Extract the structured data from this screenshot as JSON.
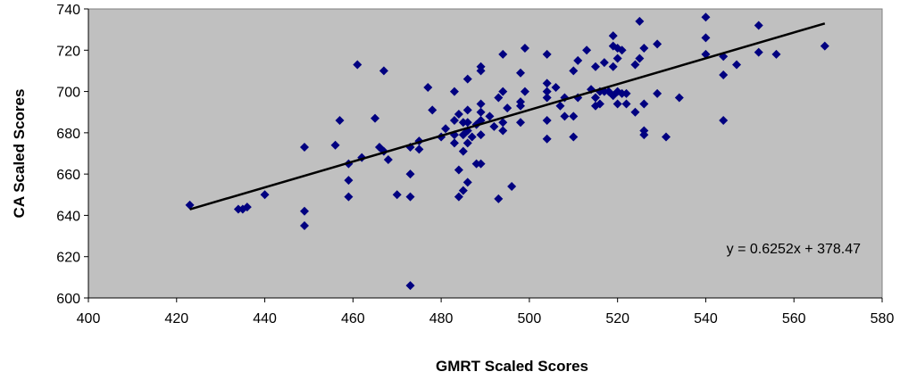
{
  "chart_data": {
    "type": "scatter",
    "xlabel": "GMRT Scaled Scores",
    "ylabel": "CA Scaled Scores",
    "xlim": [
      400,
      580
    ],
    "ylim": [
      600,
      740
    ],
    "xticks": [
      "400",
      "420",
      "440",
      "460",
      "480",
      "500",
      "520",
      "540",
      "560",
      "580"
    ],
    "yticks": [
      "600",
      "620",
      "640",
      "660",
      "680",
      "700",
      "720",
      "740"
    ],
    "grid": false,
    "plot_background": "#c0c0c0",
    "marker_color": "#000080",
    "marker": "diamond",
    "trendline": {
      "slope": 0.6252,
      "intercept": 378.47,
      "x_range": [
        423,
        567
      ],
      "color": "#000000"
    },
    "annotation": "y = 0.6252x + 378.47",
    "points": [
      [
        423,
        645
      ],
      [
        434,
        643
      ],
      [
        435,
        643
      ],
      [
        436,
        644
      ],
      [
        440,
        650
      ],
      [
        449,
        673
      ],
      [
        449,
        642
      ],
      [
        449,
        635
      ],
      [
        456,
        674
      ],
      [
        457,
        686
      ],
      [
        459,
        665
      ],
      [
        459,
        657
      ],
      [
        459,
        649
      ],
      [
        461,
        713
      ],
      [
        462,
        668
      ],
      [
        465,
        687
      ],
      [
        466,
        673
      ],
      [
        467,
        671
      ],
      [
        467,
        710
      ],
      [
        468,
        667
      ],
      [
        470,
        650
      ],
      [
        473,
        606
      ],
      [
        473,
        673
      ],
      [
        473,
        660
      ],
      [
        473,
        649
      ],
      [
        475,
        676
      ],
      [
        475,
        672
      ],
      [
        477,
        702
      ],
      [
        478,
        691
      ],
      [
        480,
        678
      ],
      [
        481,
        682
      ],
      [
        483,
        700
      ],
      [
        483,
        686
      ],
      [
        483,
        679
      ],
      [
        483,
        675
      ],
      [
        484,
        689
      ],
      [
        484,
        662
      ],
      [
        484,
        649
      ],
      [
        485,
        685
      ],
      [
        485,
        679
      ],
      [
        485,
        671
      ],
      [
        485,
        652
      ],
      [
        486,
        706
      ],
      [
        486,
        691
      ],
      [
        486,
        685
      ],
      [
        486,
        681
      ],
      [
        486,
        675
      ],
      [
        486,
        656
      ],
      [
        487,
        678
      ],
      [
        488,
        665
      ],
      [
        488,
        684
      ],
      [
        489,
        712
      ],
      [
        489,
        710
      ],
      [
        489,
        694
      ],
      [
        489,
        690
      ],
      [
        489,
        686
      ],
      [
        489,
        679
      ],
      [
        489,
        665
      ],
      [
        491,
        688
      ],
      [
        492,
        683
      ],
      [
        493,
        697
      ],
      [
        493,
        648
      ],
      [
        494,
        718
      ],
      [
        494,
        700
      ],
      [
        494,
        685
      ],
      [
        494,
        681
      ],
      [
        495,
        692
      ],
      [
        496,
        654
      ],
      [
        498,
        709
      ],
      [
        498,
        695
      ],
      [
        498,
        693
      ],
      [
        498,
        685
      ],
      [
        499,
        721
      ],
      [
        499,
        700
      ],
      [
        504,
        718
      ],
      [
        504,
        704
      ],
      [
        504,
        700
      ],
      [
        504,
        697
      ],
      [
        504,
        686
      ],
      [
        504,
        677
      ],
      [
        506,
        702
      ],
      [
        507,
        693
      ],
      [
        508,
        697
      ],
      [
        508,
        688
      ],
      [
        510,
        710
      ],
      [
        510,
        688
      ],
      [
        510,
        678
      ],
      [
        511,
        715
      ],
      [
        511,
        697
      ],
      [
        513,
        720
      ],
      [
        514,
        701
      ],
      [
        515,
        712
      ],
      [
        515,
        697
      ],
      [
        515,
        693
      ],
      [
        516,
        700
      ],
      [
        516,
        694
      ],
      [
        517,
        714
      ],
      [
        517,
        700
      ],
      [
        518,
        700
      ],
      [
        519,
        727
      ],
      [
        519,
        722
      ],
      [
        519,
        712
      ],
      [
        519,
        698
      ],
      [
        520,
        721
      ],
      [
        520,
        716
      ],
      [
        520,
        700
      ],
      [
        520,
        694
      ],
      [
        521,
        720
      ],
      [
        521,
        699
      ],
      [
        522,
        699
      ],
      [
        522,
        694
      ],
      [
        524,
        713
      ],
      [
        524,
        690
      ],
      [
        525,
        734
      ],
      [
        525,
        716
      ],
      [
        526,
        721
      ],
      [
        526,
        694
      ],
      [
        526,
        681
      ],
      [
        526,
        679
      ],
      [
        529,
        723
      ],
      [
        529,
        699
      ],
      [
        531,
        678
      ],
      [
        534,
        697
      ],
      [
        540,
        736
      ],
      [
        540,
        726
      ],
      [
        540,
        718
      ],
      [
        544,
        717
      ],
      [
        544,
        708
      ],
      [
        544,
        686
      ],
      [
        547,
        713
      ],
      [
        552,
        732
      ],
      [
        552,
        719
      ],
      [
        556,
        718
      ],
      [
        567,
        722
      ]
    ]
  }
}
